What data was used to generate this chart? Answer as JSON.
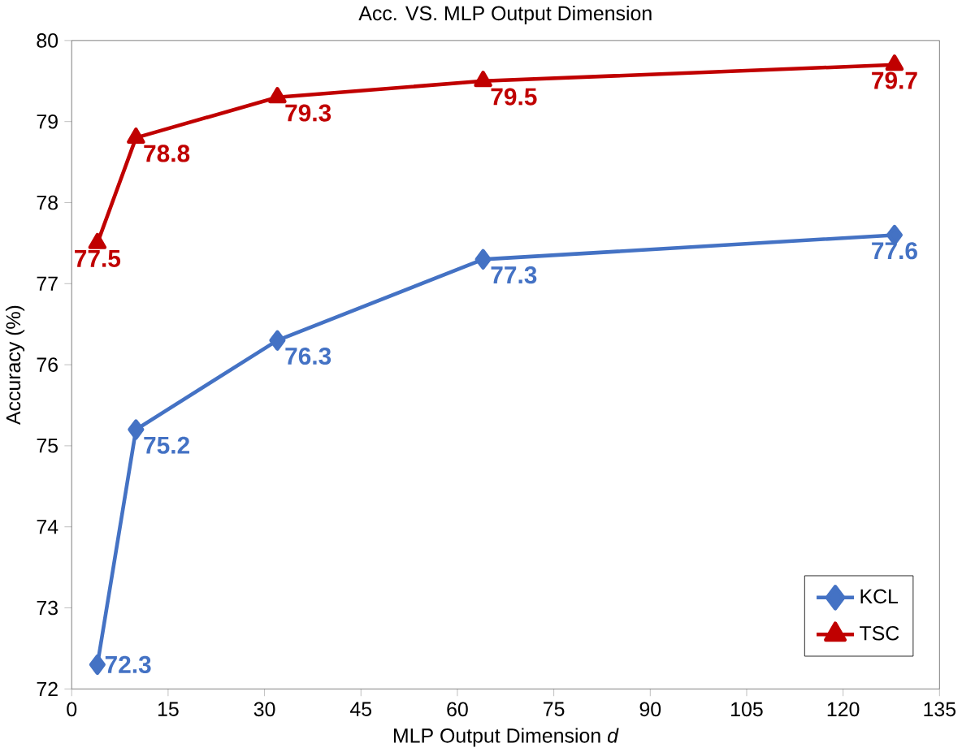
{
  "chart_data": {
    "type": "line",
    "title": "Acc. VS. MLP Output Dimension",
    "xlabel": "MLP Output Dimension *d*",
    "ylabel": "Accuracy (%)",
    "x": [
      4,
      10,
      32,
      64,
      128
    ],
    "series": [
      {
        "name": "KCL",
        "color": "#4472c4",
        "marker": "diamond",
        "values": [
          72.3,
          75.2,
          76.3,
          77.3,
          77.6
        ]
      },
      {
        "name": "TSC",
        "color": "#c00000",
        "marker": "triangle",
        "values": [
          77.5,
          78.8,
          79.3,
          79.5,
          79.7
        ]
      }
    ],
    "xlim": [
      0,
      135
    ],
    "xticks": [
      0,
      15,
      30,
      45,
      60,
      75,
      90,
      105,
      120,
      135
    ],
    "ylim": [
      72,
      80
    ],
    "yticks": [
      72,
      73,
      74,
      75,
      76,
      77,
      78,
      79,
      80
    ],
    "data_labels": true,
    "legend": "bottom right",
    "grid": false,
    "line_style": "solid"
  }
}
